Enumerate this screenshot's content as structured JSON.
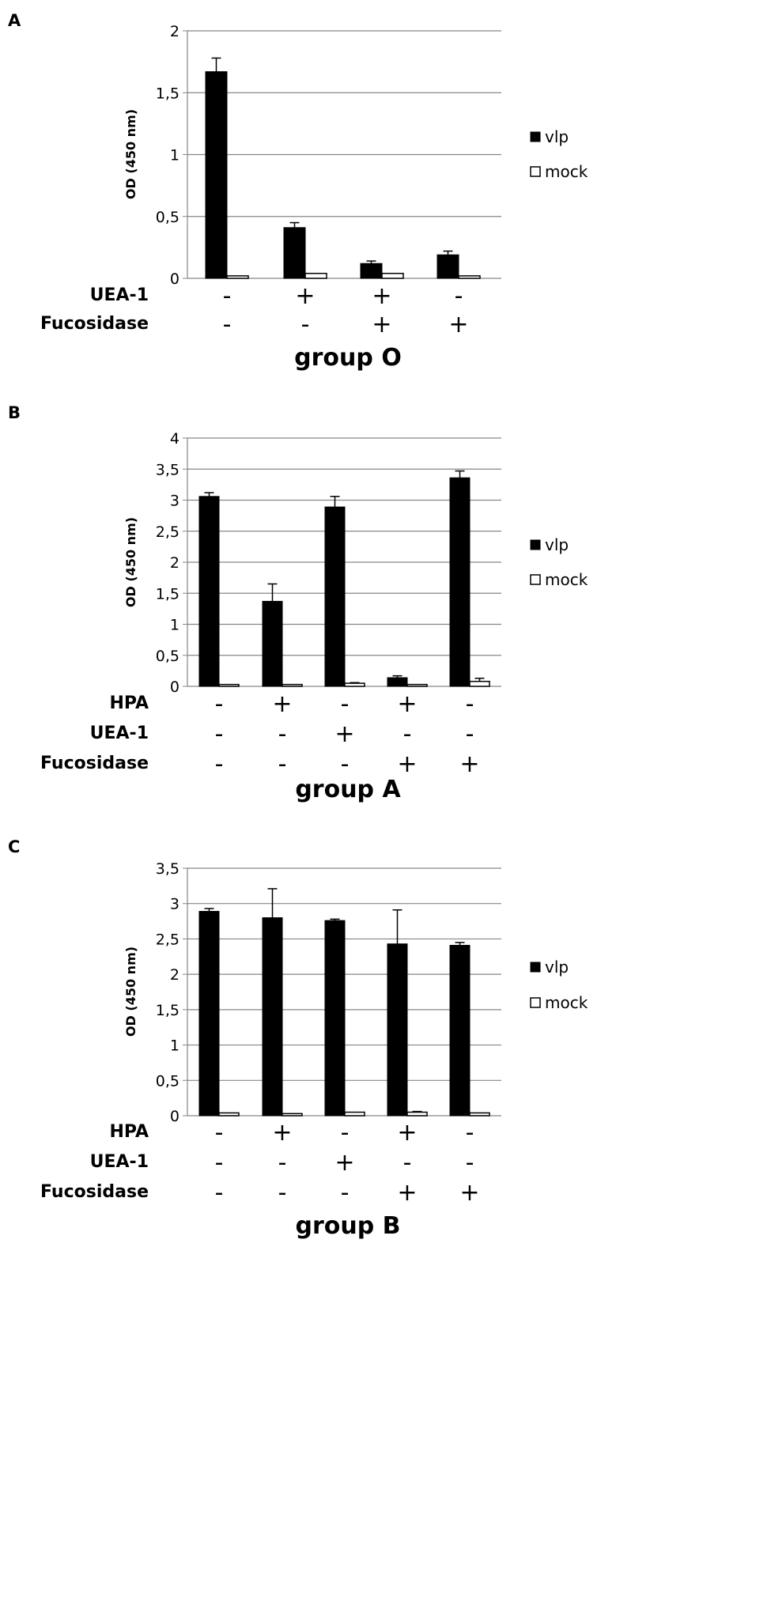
{
  "colors": {
    "vlp": "#000000",
    "mock": "#ffffff",
    "grid": "#868686"
  },
  "chart_data": [
    {
      "type": "bar",
      "panel": "A",
      "ylabel": "OD (450 nm)",
      "ylim": [
        0,
        2
      ],
      "yticks": [
        "0",
        "0,5",
        "1",
        "1,5",
        "2"
      ],
      "grid": true,
      "legend_position": "right",
      "series": [
        {
          "name": "vlp",
          "values": [
            1.67,
            0.41,
            0.12,
            0.19
          ],
          "errors": [
            0.11,
            0.04,
            0.02,
            0.03
          ]
        },
        {
          "name": "mock",
          "values": [
            0.02,
            0.04,
            0.04,
            0.02
          ],
          "errors": [
            0.0,
            0.0,
            0.0,
            0.0
          ]
        }
      ],
      "treatments": [
        {
          "label": "UEA-1",
          "signs": [
            "-",
            "+",
            "+",
            "-"
          ]
        },
        {
          "label": "Fucosidase",
          "signs": [
            "-",
            "-",
            "+",
            "+"
          ]
        }
      ],
      "group_label": "group O"
    },
    {
      "type": "bar",
      "panel": "B",
      "ylabel": "OD (450 nm)",
      "ylim": [
        0,
        4
      ],
      "yticks": [
        "0",
        "0,5",
        "1",
        "1,5",
        "2",
        "2,5",
        "3",
        "3,5",
        "4"
      ],
      "grid": true,
      "legend_position": "right",
      "series": [
        {
          "name": "vlp",
          "values": [
            3.06,
            1.37,
            2.89,
            0.14,
            3.36
          ],
          "errors": [
            0.06,
            0.28,
            0.17,
            0.03,
            0.11
          ]
        },
        {
          "name": "mock",
          "values": [
            0.03,
            0.03,
            0.05,
            0.03,
            0.08
          ],
          "errors": [
            0.0,
            0.0,
            0.01,
            0.0,
            0.05
          ]
        }
      ],
      "treatments": [
        {
          "label": "HPA",
          "signs": [
            "-",
            "+",
            "-",
            "+",
            "-"
          ]
        },
        {
          "label": "UEA-1",
          "signs": [
            "-",
            "-",
            "+",
            "-",
            "-"
          ]
        },
        {
          "label": "Fucosidase",
          "signs": [
            "-",
            "-",
            "-",
            "+",
            "+"
          ]
        }
      ],
      "group_label": "group A"
    },
    {
      "type": "bar",
      "panel": "C",
      "ylabel": "OD (450 nm)",
      "ylim": [
        0,
        3.5
      ],
      "yticks": [
        "0",
        "0,5",
        "1",
        "1,5",
        "2",
        "2,5",
        "3",
        "3,5"
      ],
      "grid": true,
      "legend_position": "right",
      "series": [
        {
          "name": "vlp",
          "values": [
            2.89,
            2.8,
            2.76,
            2.43,
            2.41
          ],
          "errors": [
            0.04,
            0.41,
            0.02,
            0.48,
            0.04
          ]
        },
        {
          "name": "mock",
          "values": [
            0.04,
            0.03,
            0.05,
            0.05,
            0.04
          ],
          "errors": [
            0.0,
            0.0,
            0.0,
            0.01,
            0.0
          ]
        }
      ],
      "treatments": [
        {
          "label": "HPA",
          "signs": [
            "-",
            "+",
            "-",
            "+",
            "-"
          ]
        },
        {
          "label": "UEA-1",
          "signs": [
            "-",
            "-",
            "+",
            "-",
            "-"
          ]
        },
        {
          "label": "Fucosidase",
          "signs": [
            "-",
            "-",
            "-",
            "+",
            "+"
          ]
        }
      ],
      "group_label": "group B"
    }
  ]
}
